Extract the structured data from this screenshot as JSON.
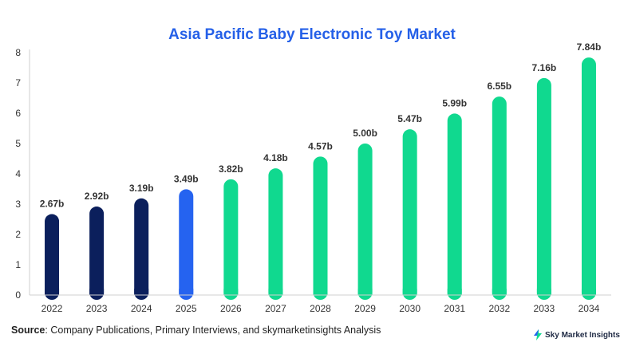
{
  "title": "Asia Pacific Baby Electronic Toy Market",
  "source": {
    "label": "Source",
    "text": ": Company Publications, Primary Interviews, and skymarketinsights Analysis"
  },
  "brand": {
    "name": "Sky Market Insights"
  },
  "chart_data": {
    "type": "bar",
    "title": "Asia Pacific Baby Electronic Toy Market",
    "categories": [
      "2022",
      "2023",
      "2024",
      "2025",
      "2026",
      "2027",
      "2028",
      "2029",
      "2030",
      "2031",
      "2032",
      "2033",
      "2034"
    ],
    "values": [
      2.67,
      2.92,
      3.19,
      3.49,
      3.82,
      4.18,
      4.57,
      5.0,
      5.47,
      5.99,
      6.55,
      7.16,
      7.84
    ],
    "data_labels": [
      "2.67b",
      "2.92b",
      "3.19b",
      "3.49b",
      "3.82b",
      "4.18b",
      "4.57b",
      "5.00b",
      "5.47b",
      "5.99b",
      "6.55b",
      "7.16b",
      "7.84b"
    ],
    "bar_colors": [
      "#0b1f5c",
      "#0b1f5c",
      "#0b1f5c",
      "#2563f0",
      "#10d98f",
      "#10d98f",
      "#10d98f",
      "#10d98f",
      "#10d98f",
      "#10d98f",
      "#10d98f",
      "#10d98f",
      "#10d98f"
    ],
    "ylim": [
      0,
      8
    ],
    "yticks": [
      0,
      1,
      2,
      3,
      4,
      5,
      6,
      7,
      8
    ],
    "xlabel": "",
    "ylabel": "",
    "grid": false
  }
}
